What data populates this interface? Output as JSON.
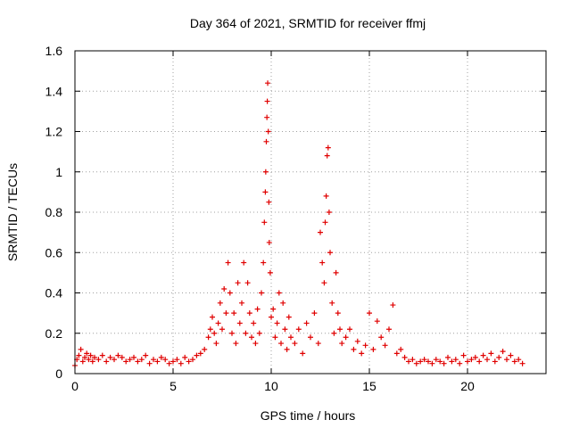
{
  "chart_data": {
    "type": "scatter",
    "title": "Day 364 of 2021, SRMTID for receiver ffmj",
    "xlabel": "GPS time / hours",
    "ylabel": "SRMTID / TECUs",
    "xlim": [
      0,
      24
    ],
    "ylim": [
      0,
      1.6
    ],
    "xticks": [
      0,
      5,
      10,
      15,
      20
    ],
    "yticks": [
      0,
      0.2,
      0.4,
      0.6,
      0.8,
      1,
      1.2,
      1.4,
      1.6
    ],
    "xtick_labels": [
      "0",
      "5",
      "10",
      "15",
      "20"
    ],
    "ytick_labels": [
      "0",
      "0.2",
      "0.4",
      "0.6",
      "0.8",
      "1",
      "1.2",
      "1.4",
      "1.6"
    ],
    "grid": true,
    "marker": "+",
    "color": "#e00000",
    "series": [
      {
        "name": "SRMTID",
        "x": [
          0.0,
          0.1,
          0.2,
          0.3,
          0.4,
          0.5,
          0.6,
          0.7,
          0.8,
          0.9,
          1.0,
          1.2,
          1.4,
          1.6,
          1.8,
          2.0,
          2.2,
          2.4,
          2.6,
          2.8,
          3.0,
          3.2,
          3.4,
          3.6,
          3.8,
          4.0,
          4.2,
          4.4,
          4.6,
          4.8,
          5.0,
          5.2,
          5.4,
          5.6,
          5.8,
          6.0,
          6.2,
          6.4,
          6.6,
          6.8,
          6.9,
          7.0,
          7.1,
          7.2,
          7.3,
          7.4,
          7.5,
          7.6,
          7.7,
          7.8,
          7.9,
          8.0,
          8.1,
          8.2,
          8.3,
          8.4,
          8.5,
          8.6,
          8.7,
          8.8,
          8.9,
          9.0,
          9.1,
          9.2,
          9.3,
          9.4,
          9.5,
          9.6,
          9.65,
          9.7,
          9.72,
          9.75,
          9.78,
          9.8,
          9.82,
          9.85,
          9.88,
          9.9,
          9.95,
          10.0,
          10.1,
          10.2,
          10.3,
          10.4,
          10.5,
          10.6,
          10.7,
          10.8,
          10.9,
          11.0,
          11.2,
          11.4,
          11.6,
          11.8,
          12.0,
          12.2,
          12.4,
          12.5,
          12.6,
          12.7,
          12.75,
          12.8,
          12.85,
          12.9,
          12.95,
          13.0,
          13.1,
          13.2,
          13.3,
          13.4,
          13.5,
          13.6,
          13.8,
          14.0,
          14.2,
          14.4,
          14.6,
          14.8,
          15.0,
          15.2,
          15.4,
          15.6,
          15.8,
          16.0,
          16.2,
          16.4,
          16.6,
          16.8,
          17.0,
          17.2,
          17.4,
          17.6,
          17.8,
          18.0,
          18.2,
          18.4,
          18.6,
          18.8,
          19.0,
          19.2,
          19.4,
          19.6,
          19.8,
          20.0,
          20.2,
          20.4,
          20.6,
          20.8,
          21.0,
          21.2,
          21.4,
          21.6,
          21.8,
          22.0,
          22.2,
          22.4,
          22.6,
          22.8
        ],
        "y": [
          0.04,
          0.07,
          0.09,
          0.12,
          0.06,
          0.08,
          0.1,
          0.07,
          0.09,
          0.06,
          0.08,
          0.07,
          0.09,
          0.06,
          0.08,
          0.07,
          0.09,
          0.08,
          0.06,
          0.07,
          0.08,
          0.06,
          0.07,
          0.09,
          0.05,
          0.07,
          0.06,
          0.08,
          0.07,
          0.05,
          0.06,
          0.07,
          0.05,
          0.08,
          0.06,
          0.07,
          0.09,
          0.1,
          0.12,
          0.18,
          0.22,
          0.28,
          0.2,
          0.15,
          0.25,
          0.35,
          0.22,
          0.42,
          0.3,
          0.55,
          0.4,
          0.2,
          0.3,
          0.15,
          0.45,
          0.25,
          0.35,
          0.55,
          0.2,
          0.45,
          0.3,
          0.18,
          0.25,
          0.15,
          0.32,
          0.2,
          0.4,
          0.55,
          0.75,
          0.9,
          1.0,
          1.15,
          1.27,
          1.35,
          1.44,
          1.2,
          0.85,
          0.65,
          0.5,
          0.28,
          0.32,
          0.18,
          0.25,
          0.4,
          0.15,
          0.35,
          0.22,
          0.12,
          0.28,
          0.18,
          0.15,
          0.22,
          0.1,
          0.25,
          0.18,
          0.3,
          0.15,
          0.7,
          0.55,
          0.45,
          0.75,
          0.88,
          1.08,
          1.12,
          0.8,
          0.6,
          0.35,
          0.2,
          0.5,
          0.3,
          0.22,
          0.15,
          0.18,
          0.22,
          0.12,
          0.16,
          0.1,
          0.14,
          0.3,
          0.12,
          0.26,
          0.18,
          0.14,
          0.22,
          0.34,
          0.1,
          0.12,
          0.08,
          0.06,
          0.07,
          0.05,
          0.06,
          0.07,
          0.06,
          0.05,
          0.07,
          0.06,
          0.05,
          0.08,
          0.06,
          0.07,
          0.05,
          0.09,
          0.06,
          0.07,
          0.08,
          0.06,
          0.09,
          0.07,
          0.1,
          0.06,
          0.08,
          0.11,
          0.07,
          0.09,
          0.06,
          0.07,
          0.05
        ]
      }
    ]
  }
}
